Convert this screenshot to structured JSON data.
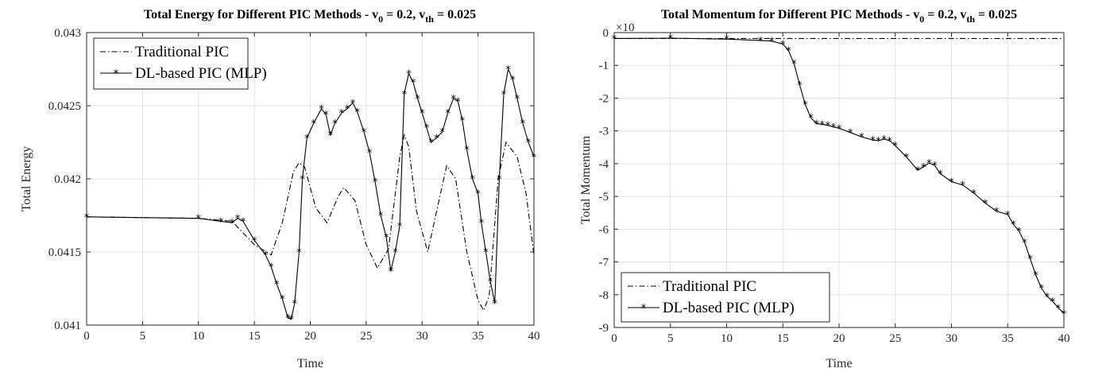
{
  "chart_data": [
    {
      "type": "line",
      "title": "Total Energy for Different PIC Methods - v",
      "title_sub0": "0",
      "title_mid": " = 0.2, v",
      "title_subth": "th",
      "title_end": " = 0.025",
      "xlabel": "Time",
      "ylabel": "Total Energy",
      "xlim": [
        0,
        40
      ],
      "ylim": [
        0.041,
        0.043
      ],
      "xticks": [
        "0",
        "5",
        "10",
        "15",
        "20",
        "25",
        "30",
        "35",
        "40"
      ],
      "yticks": [
        "0.041",
        "0.0415",
        "0.042",
        "0.0425",
        "0.043"
      ],
      "grid": true,
      "legend_position": "top-left",
      "series": [
        {
          "name": "Traditional PIC",
          "style": "dash-dot",
          "points": [
            [
              0,
              0.04174
            ],
            [
              10,
              0.04173
            ],
            [
              13,
              0.04171
            ],
            [
              15,
              0.04155
            ],
            [
              16.5,
              0.04148
            ],
            [
              17.5,
              0.0417
            ],
            [
              18.5,
              0.04205
            ],
            [
              19,
              0.04211
            ],
            [
              19.5,
              0.04208
            ],
            [
              20.5,
              0.0418
            ],
            [
              21.5,
              0.0417
            ],
            [
              22.5,
              0.04188
            ],
            [
              23,
              0.04194
            ],
            [
              24,
              0.04185
            ],
            [
              25,
              0.04155
            ],
            [
              26,
              0.04139
            ],
            [
              27,
              0.04152
            ],
            [
              28,
              0.04215
            ],
            [
              28.4,
              0.0423
            ],
            [
              28.8,
              0.04222
            ],
            [
              29.5,
              0.04178
            ],
            [
              30.5,
              0.0415
            ],
            [
              31.5,
              0.04185
            ],
            [
              32.2,
              0.04209
            ],
            [
              33,
              0.042
            ],
            [
              34,
              0.0415
            ],
            [
              35,
              0.04117
            ],
            [
              35.5,
              0.0411
            ],
            [
              36,
              0.0412
            ],
            [
              36.8,
              0.042
            ],
            [
              37.5,
              0.04225
            ],
            [
              38.5,
              0.04215
            ],
            [
              39.3,
              0.0419
            ],
            [
              40,
              0.04148
            ]
          ]
        },
        {
          "name": "DL-based PIC (MLP)",
          "style": "solid-star",
          "points": [
            [
              0,
              0.04174
            ],
            [
              10,
              0.04173
            ],
            [
              12,
              0.04171
            ],
            [
              13,
              0.0417
            ],
            [
              13.5,
              0.04173
            ],
            [
              14,
              0.04171
            ],
            [
              15,
              0.04158
            ],
            [
              16,
              0.04148
            ],
            [
              16.5,
              0.0414
            ],
            [
              17,
              0.04128
            ],
            [
              17.5,
              0.04118
            ],
            [
              18,
              0.04105
            ],
            [
              18.3,
              0.04104
            ],
            [
              18.6,
              0.04115
            ],
            [
              19,
              0.0415
            ],
            [
              19.3,
              0.042
            ],
            [
              19.7,
              0.04228
            ],
            [
              20.3,
              0.04238
            ],
            [
              21,
              0.04248
            ],
            [
              21.4,
              0.04244
            ],
            [
              21.8,
              0.0423
            ],
            [
              22.2,
              0.04238
            ],
            [
              22.8,
              0.04245
            ],
            [
              23.3,
              0.04248
            ],
            [
              23.8,
              0.04252
            ],
            [
              24.2,
              0.04246
            ],
            [
              24.8,
              0.04232
            ],
            [
              25.3,
              0.04218
            ],
            [
              25.8,
              0.04198
            ],
            [
              26.3,
              0.04175
            ],
            [
              26.8,
              0.0416
            ],
            [
              27.2,
              0.04137
            ],
            [
              27.6,
              0.0415
            ],
            [
              28,
              0.04168
            ],
            [
              28.4,
              0.04258
            ],
            [
              28.8,
              0.04272
            ],
            [
              29.2,
              0.04266
            ],
            [
              29.6,
              0.04255
            ],
            [
              30,
              0.04245
            ],
            [
              30.4,
              0.04235
            ],
            [
              30.8,
              0.04225
            ],
            [
              31.3,
              0.04228
            ],
            [
              31.8,
              0.04232
            ],
            [
              32.3,
              0.04245
            ],
            [
              32.8,
              0.04255
            ],
            [
              33.2,
              0.04253
            ],
            [
              33.6,
              0.0424
            ],
            [
              34,
              0.0422
            ],
            [
              34.5,
              0.042
            ],
            [
              35,
              0.0419
            ],
            [
              35.3,
              0.0417
            ],
            [
              35.7,
              0.0415
            ],
            [
              36.1,
              0.0413
            ],
            [
              36.5,
              0.04115
            ],
            [
              36.9,
              0.042
            ],
            [
              37.3,
              0.04258
            ],
            [
              37.7,
              0.04275
            ],
            [
              38.1,
              0.04268
            ],
            [
              38.5,
              0.04255
            ],
            [
              39,
              0.04238
            ],
            [
              39.5,
              0.04225
            ],
            [
              40,
              0.04215
            ]
          ]
        }
      ]
    },
    {
      "type": "line",
      "title": "Total Momentum for Different PIC Methods - v",
      "title_sub0": "0",
      "title_mid": " = 0.2, v",
      "title_subth": "th",
      "title_end": " = 0.025",
      "xlabel": "Time",
      "ylabel": "Total Momentum",
      "exponent_label": "×10",
      "xlim": [
        0,
        40
      ],
      "ylim": [
        -9,
        0
      ],
      "xticks": [
        "0",
        "5",
        "10",
        "15",
        "20",
        "25",
        "30",
        "35",
        "40"
      ],
      "yticks": [
        "0",
        "-1",
        "-2",
        "-3",
        "-4",
        "-5",
        "-6",
        "-7",
        "-8",
        "-9"
      ],
      "grid": true,
      "legend_position": "bottom-left",
      "series": [
        {
          "name": "Traditional PIC",
          "style": "dash-dot",
          "points": [
            [
              0,
              -0.18
            ],
            [
              40,
              -0.18
            ]
          ]
        },
        {
          "name": "DL-based PIC (MLP)",
          "style": "solid-star",
          "points": [
            [
              0,
              -0.18
            ],
            [
              5,
              -0.17
            ],
            [
              10,
              -0.2
            ],
            [
              13,
              -0.24
            ],
            [
              14,
              -0.26
            ],
            [
              15,
              -0.35
            ],
            [
              15.5,
              -0.55
            ],
            [
              16,
              -0.95
            ],
            [
              16.5,
              -1.6
            ],
            [
              17,
              -2.2
            ],
            [
              17.5,
              -2.6
            ],
            [
              18,
              -2.78
            ],
            [
              18.5,
              -2.8
            ],
            [
              19,
              -2.83
            ],
            [
              19.5,
              -2.88
            ],
            [
              20,
              -2.92
            ],
            [
              21,
              -3.05
            ],
            [
              22,
              -3.18
            ],
            [
              23,
              -3.28
            ],
            [
              23.5,
              -3.3
            ],
            [
              24,
              -3.25
            ],
            [
              24.5,
              -3.3
            ],
            [
              25,
              -3.45
            ],
            [
              26,
              -3.8
            ],
            [
              27,
              -4.2
            ],
            [
              27.5,
              -4.1
            ],
            [
              28,
              -3.98
            ],
            [
              28.5,
              -4.05
            ],
            [
              29,
              -4.3
            ],
            [
              30,
              -4.55
            ],
            [
              31,
              -4.65
            ],
            [
              32,
              -4.9
            ],
            [
              33,
              -5.2
            ],
            [
              34,
              -5.45
            ],
            [
              35,
              -5.55
            ],
            [
              35.5,
              -5.85
            ],
            [
              36,
              -6.05
            ],
            [
              36.5,
              -6.4
            ],
            [
              37,
              -6.9
            ],
            [
              37.5,
              -7.4
            ],
            [
              38,
              -7.8
            ],
            [
              38.5,
              -8.05
            ],
            [
              39,
              -8.2
            ],
            [
              39.5,
              -8.4
            ],
            [
              40,
              -8.57
            ]
          ]
        }
      ]
    }
  ]
}
